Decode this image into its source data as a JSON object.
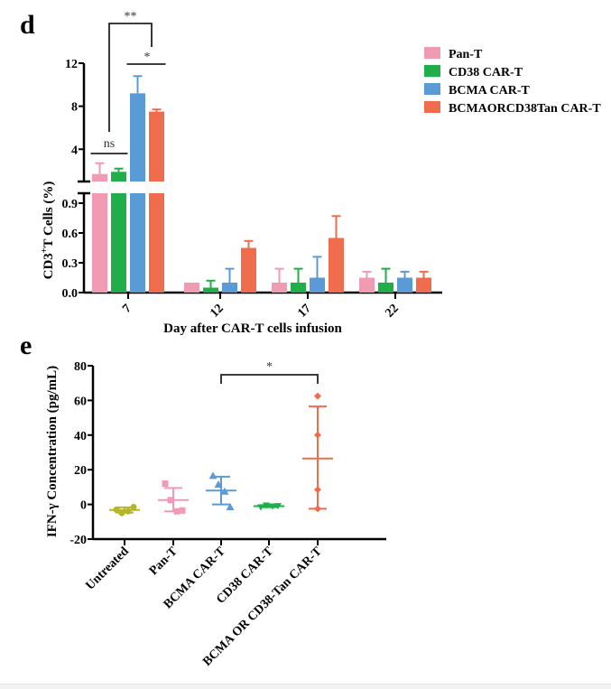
{
  "panels": {
    "d_label": "d",
    "e_label": "e"
  },
  "chart_data": [
    {
      "id": "d",
      "type": "bar",
      "title": "",
      "xlabel": "Day after CAR-T cells infusion",
      "ylabel": "CD3⁺ T Cells (%)",
      "ylabel_parts": {
        "pre": "CD3",
        "sup": "+",
        "post": "T Cells (%)"
      },
      "categories": [
        "7",
        "12",
        "17",
        "22"
      ],
      "broken_axis": true,
      "ylim_lower": [
        0,
        1.0
      ],
      "ylim_upper": [
        1.0,
        12
      ],
      "yticks_lower": [
        "0.0",
        "0.3",
        "0.6",
        "0.9"
      ],
      "yticks_lower_values": [
        0,
        0.3,
        0.6,
        0.9
      ],
      "yticks_upper": [
        "4",
        "8",
        "12"
      ],
      "yticks_upper_values": [
        4,
        8,
        12
      ],
      "legend_position": "top-right",
      "series": [
        {
          "name": "Pan-T",
          "color": "#f09ab4",
          "values": [
            1.7,
            0.1,
            0.1,
            0.15
          ],
          "err_upper": [
            2.7,
            0.1,
            0.24,
            0.21
          ]
        },
        {
          "name": "CD38 CAR-T",
          "color": "#1fae4a",
          "values": [
            1.9,
            0.05,
            0.1,
            0.1
          ],
          "err_upper": [
            2.2,
            0.12,
            0.24,
            0.24
          ]
        },
        {
          "name": "BCMA CAR-T",
          "color": "#5b9bd5",
          "values": [
            9.2,
            0.1,
            0.15,
            0.15
          ],
          "err_upper": [
            10.8,
            0.24,
            0.36,
            0.21
          ]
        },
        {
          "name": "BCMA OR CD38 Tan CAR-T",
          "color": "#ef6c4c",
          "values": [
            7.5,
            0.45,
            0.55,
            0.15
          ],
          "err_upper": [
            7.7,
            0.52,
            0.77,
            0.21
          ]
        }
      ],
      "legend_labels": [
        "Pan-T",
        "CD38 CAR-T",
        "BCMA CAR-T",
        "BCMAORCD38Tan CAR-T"
      ],
      "annotations": [
        {
          "text": "ns",
          "between": [
            "Pan-T",
            "CD38 CAR-T"
          ],
          "category": "7"
        },
        {
          "text": "*",
          "between": [
            "BCMA CAR-T",
            "BCMA OR CD38 Tan CAR-T"
          ],
          "category": "7"
        },
        {
          "text": "**",
          "between": [
            "Pan-T/CD38 CAR-T",
            "BCMA CAR-T"
          ],
          "category": "7"
        }
      ]
    },
    {
      "id": "e",
      "type": "scatter",
      "title": "",
      "xlabel": "",
      "ylabel": "IFN-γ Concentration (pg/mL)",
      "categories": [
        "Untreated",
        "Pan-T",
        "BCMA CAR-T",
        "CD38 CAR-T",
        "BCMA OR CD38-Tan CAR-T"
      ],
      "ylim": [
        -20,
        80
      ],
      "yticks": [
        "-20",
        "0",
        "20",
        "40",
        "60",
        "80"
      ],
      "ytick_values": [
        -20,
        0,
        20,
        40,
        60,
        80
      ],
      "groups": [
        {
          "name": "Untreated",
          "color": "#b5b52a",
          "marker": "circle",
          "points": [
            -3,
            -5,
            -4,
            -1.5
          ],
          "mean": -3.2,
          "sd_low": -4.7,
          "sd_high": -1.7
        },
        {
          "name": "Pan-T",
          "color": "#f09ab4",
          "marker": "square",
          "points": [
            12,
            2.5,
            -4,
            -3.5
          ],
          "mean": 2.5,
          "sd_low": -4,
          "sd_high": 9.5
        },
        {
          "name": "BCMA CAR-T",
          "color": "#5b9bd5",
          "marker": "triangle",
          "points": [
            16.5,
            11.5,
            7.5,
            -1.5
          ],
          "mean": 8,
          "sd_low": 0,
          "sd_high": 16
        },
        {
          "name": "CD38 CAR-T",
          "color": "#1fae4a",
          "marker": "triangle-down",
          "points": [
            -1.5,
            -0.5,
            -1,
            -0.8
          ],
          "mean": -1,
          "sd_low": -1.6,
          "sd_high": -0.4
        },
        {
          "name": "BCMA OR CD38-Tan CAR-T",
          "color": "#ef6c4c",
          "marker": "diamond",
          "points": [
            62.5,
            40,
            8.5,
            -2.5
          ],
          "mean": 26.5,
          "sd_low": -2.5,
          "sd_high": 56.5
        }
      ],
      "annotations": [
        {
          "text": "*",
          "between": [
            "BCMA CAR-T",
            "BCMA OR CD38-Tan CAR-T"
          ]
        }
      ]
    }
  ]
}
